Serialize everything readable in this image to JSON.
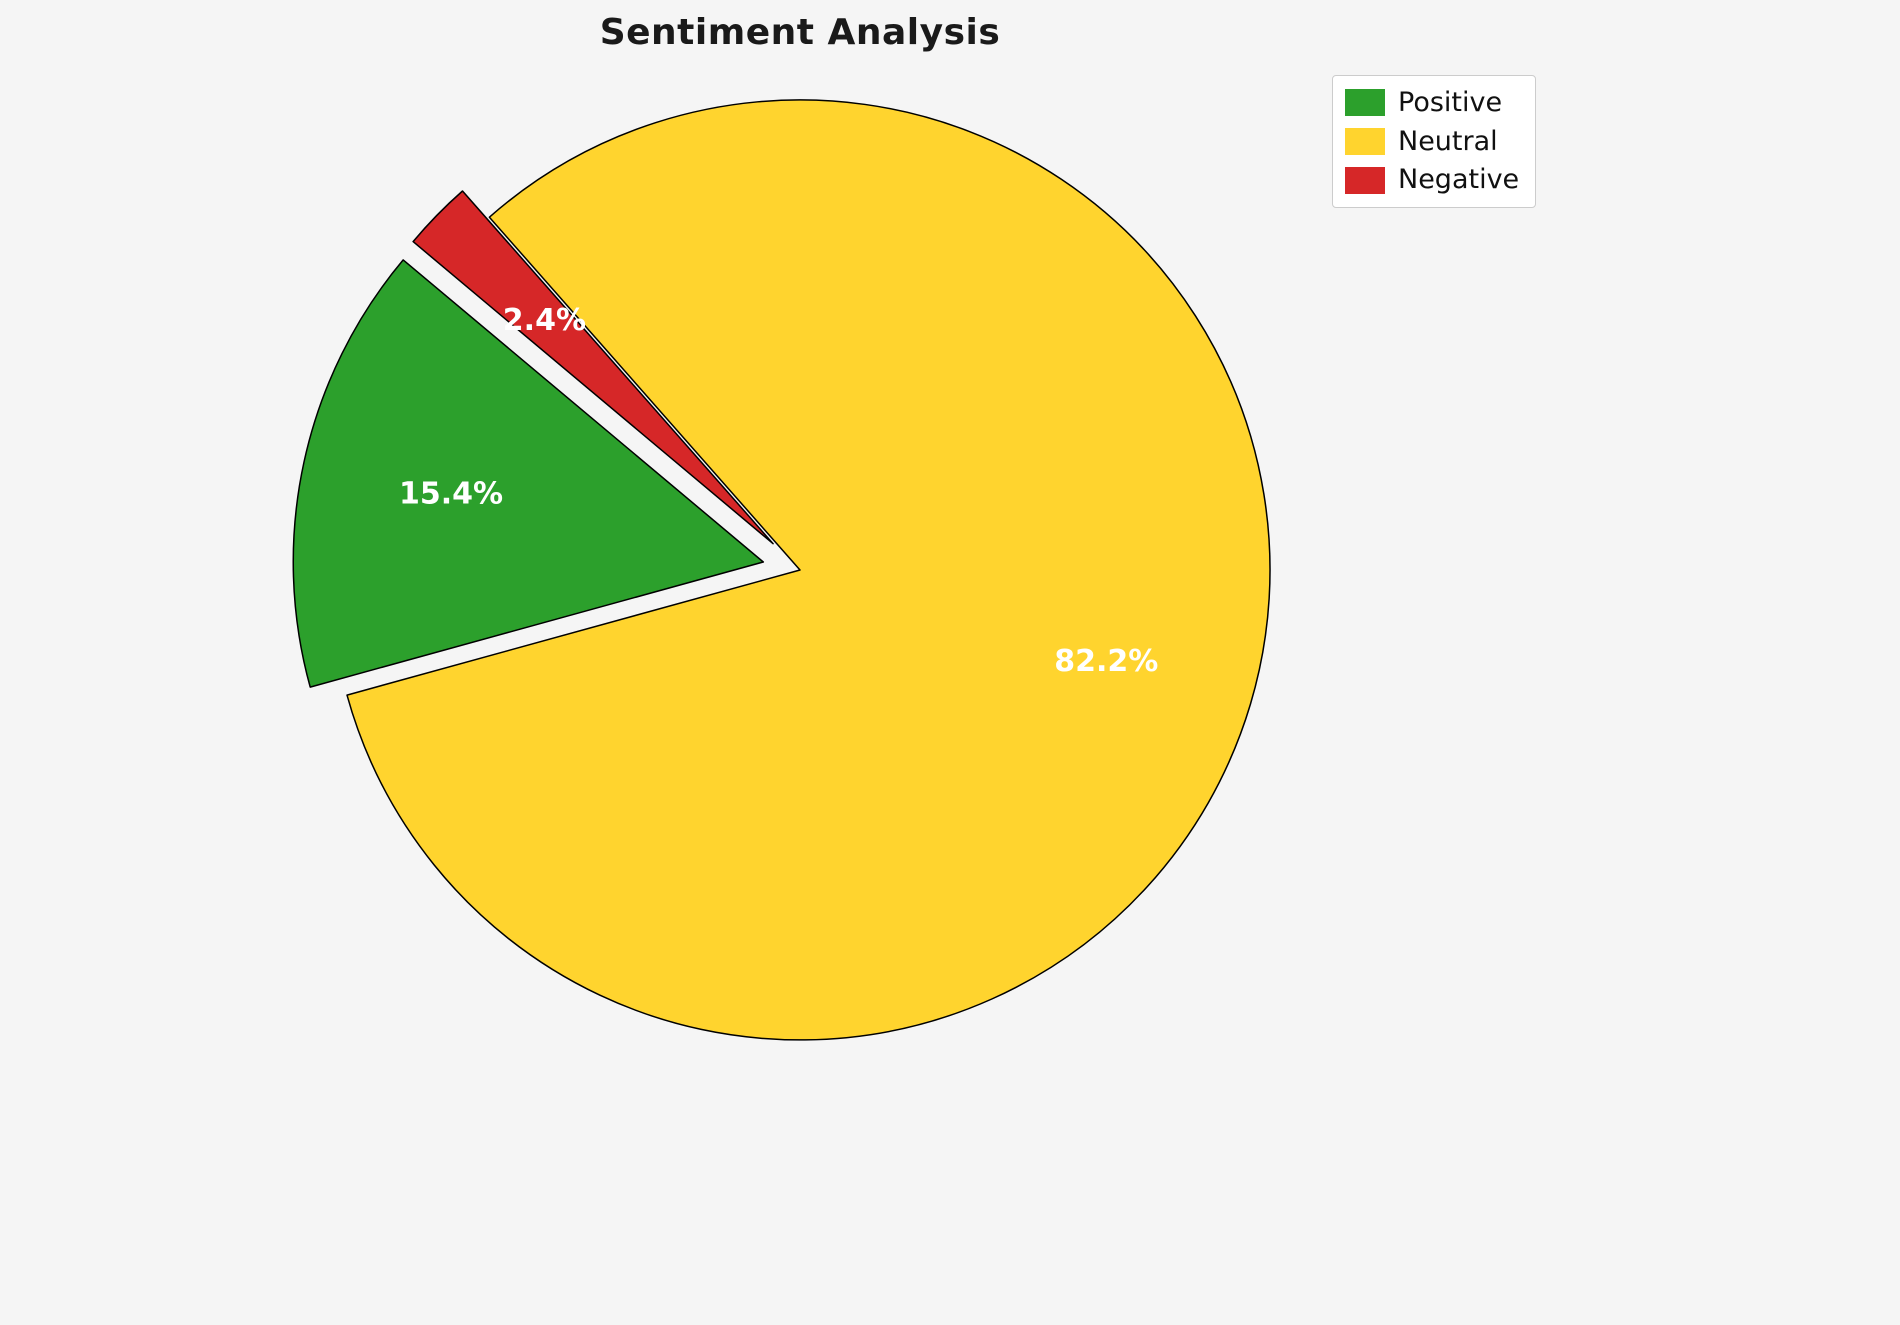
{
  "title": "Sentiment Analysis",
  "background_color": "#f5f5f5",
  "chart_data": {
    "type": "pie",
    "title": "Sentiment Analysis",
    "categories": [
      "Positive",
      "Neutral",
      "Negative"
    ],
    "values": [
      15.4,
      82.2,
      2.4
    ],
    "autopct_labels": [
      "15.4%",
      "82.2%",
      "2.4%"
    ],
    "colors": [
      "#2ca02c",
      "#ffd42e",
      "#d62728"
    ],
    "explode": [
      0.08,
      0,
      0.08
    ],
    "startangle": 140,
    "counterclockwise": true,
    "pctdistance": 0.68,
    "slice_edge_color": "#000000",
    "pct_label_color": "#ffffff",
    "legend": {
      "position": "upper right",
      "labels": [
        "Positive",
        "Neutral",
        "Negative"
      ]
    }
  }
}
